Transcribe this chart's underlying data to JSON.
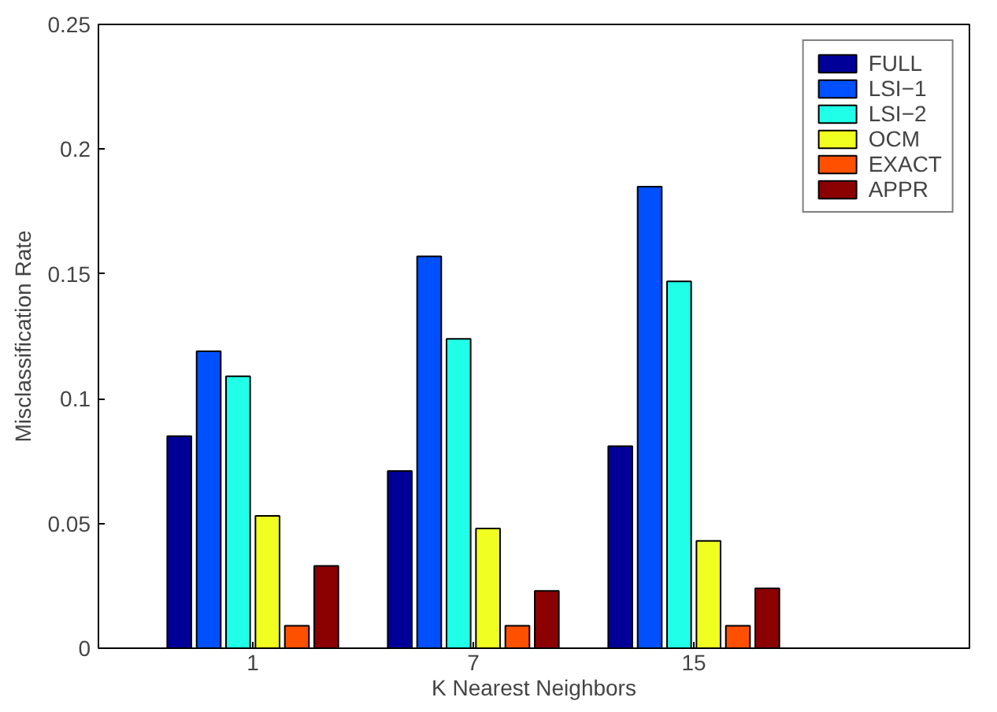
{
  "chart_data": {
    "type": "bar",
    "xlabel": "K Nearest Neighbors",
    "ylabel": "Misclassification Rate",
    "categories": [
      "1",
      "7",
      "15"
    ],
    "series": [
      {
        "name": "FULL",
        "color": "#000099",
        "values": [
          0.085,
          0.071,
          0.081
        ]
      },
      {
        "name": "LSI−1",
        "color": "#0050ff",
        "values": [
          0.119,
          0.157,
          0.185
        ]
      },
      {
        "name": "LSI−2",
        "color": "#20ffe8",
        "values": [
          0.109,
          0.124,
          0.147
        ]
      },
      {
        "name": "OCM",
        "color": "#f0ff20",
        "values": [
          0.053,
          0.048,
          0.043
        ]
      },
      {
        "name": "EXACT",
        "color": "#ff5000",
        "values": [
          0.009,
          0.009,
          0.009
        ]
      },
      {
        "name": "APPR",
        "color": "#8b0000",
        "values": [
          0.033,
          0.023,
          0.024
        ]
      }
    ],
    "ylim": [
      0,
      0.25
    ],
    "yticks": [
      0,
      0.05,
      0.1,
      0.15,
      0.2,
      0.25
    ],
    "grid": false,
    "legend": "top right"
  }
}
